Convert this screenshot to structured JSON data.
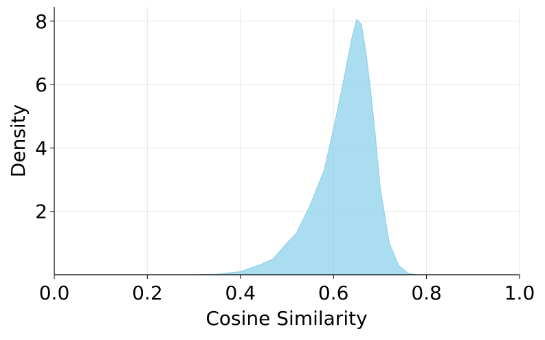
{
  "chart_data": {
    "type": "area",
    "xlabel": "Cosine Similarity",
    "ylabel": "Density",
    "x": [
      0.3,
      0.35,
      0.4,
      0.44,
      0.47,
      0.5,
      0.52,
      0.55,
      0.58,
      0.6,
      0.62,
      0.64,
      0.65,
      0.66,
      0.67,
      0.68,
      0.69,
      0.7,
      0.72,
      0.74,
      0.76,
      0.78
    ],
    "values": [
      0.0,
      0.02,
      0.1,
      0.3,
      0.5,
      1.0,
      1.3,
      2.2,
      3.3,
      4.6,
      6.0,
      7.5,
      8.05,
      7.9,
      7.0,
      5.8,
      4.4,
      2.8,
      1.0,
      0.3,
      0.05,
      0.0
    ],
    "color": "#87ceeb",
    "opacity": 0.7,
    "xlim": [
      0,
      1
    ],
    "ylim": [
      0,
      8.45
    ],
    "xticks": [
      {
        "value": 0,
        "label": "0.0"
      },
      0.2,
      0.4,
      0.6,
      0.8,
      {
        "value": 1,
        "label": "1.0"
      }
    ],
    "yticks": [
      2,
      4,
      6,
      8
    ],
    "grid": true
  }
}
